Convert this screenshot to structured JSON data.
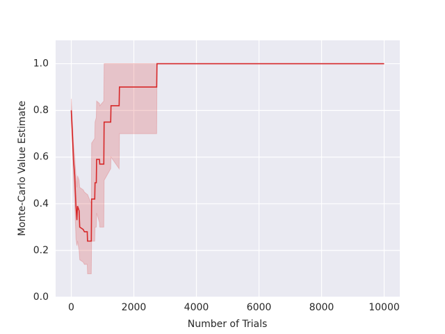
{
  "chart_data": {
    "type": "line",
    "xlabel": "Number of Trials",
    "ylabel": "Monte-Carlo Value Estimate",
    "xlim": [
      -500,
      10500
    ],
    "ylim": [
      0,
      1.1
    ],
    "xticks": [
      0,
      2000,
      4000,
      6000,
      8000,
      10000
    ],
    "yticks": [
      {
        "value": 0,
        "label": "0.0"
      },
      {
        "value": 0.2,
        "label": "0.2"
      },
      {
        "value": 0.4,
        "label": "0.4"
      },
      {
        "value": 0.6,
        "label": "0.6"
      },
      {
        "value": 0.8,
        "label": "0.8"
      },
      {
        "value": 1,
        "label": "1.0"
      }
    ],
    "grid": true,
    "series": [
      {
        "color": "#d62728",
        "x": [
          0,
          50,
          70,
          110,
          150,
          180,
          200,
          250,
          270,
          380,
          420,
          510,
          520,
          640,
          650,
          750,
          760,
          800,
          810,
          900,
          910,
          1040,
          1050,
          1260,
          1270,
          1530,
          1540,
          2730,
          2740,
          10000
        ],
        "values": [
          0.8,
          0.66,
          0.59,
          0.52,
          0.39,
          0.33,
          0.39,
          0.37,
          0.3,
          0.29,
          0.28,
          0.28,
          0.24,
          0.24,
          0.42,
          0.42,
          0.49,
          0.49,
          0.59,
          0.59,
          0.57,
          0.57,
          0.75,
          0.75,
          0.82,
          0.82,
          0.9,
          0.9,
          1,
          1
        ],
        "lower": [
          0.75,
          0.6,
          0.5,
          0.4,
          0.25,
          0.22,
          0.24,
          0.2,
          0.16,
          0.15,
          0.14,
          0.14,
          0.1,
          0.1,
          0.24,
          0.24,
          0.3,
          0.3,
          0.36,
          0.32,
          0.3,
          0.3,
          0.5,
          0.55,
          0.6,
          0.55,
          0.7,
          0.7,
          1,
          1
        ],
        "upper": [
          0.85,
          0.72,
          0.66,
          0.6,
          0.52,
          0.47,
          0.52,
          0.5,
          0.47,
          0.46,
          0.45,
          0.44,
          0.44,
          0.4,
          0.66,
          0.68,
          0.75,
          0.77,
          0.84,
          0.83,
          0.82,
          0.84,
          1,
          1,
          1,
          1,
          1,
          1,
          1,
          1
        ]
      }
    ]
  }
}
